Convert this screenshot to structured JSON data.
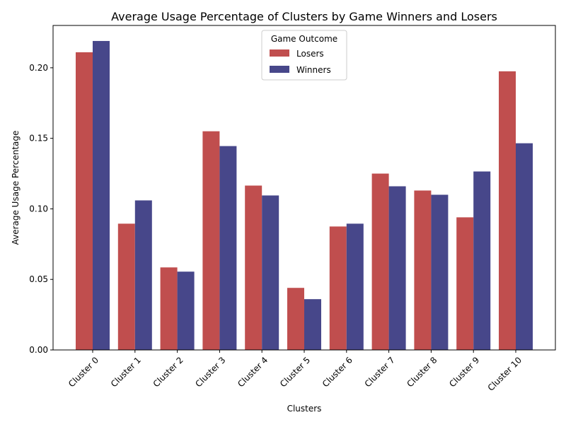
{
  "chart_data": {
    "type": "bar",
    "title": "Average Usage Percentage of Clusters by Game Winners and Losers",
    "xlabel": "Clusters",
    "ylabel": "Average Usage Percentage",
    "categories": [
      "Cluster 0",
      "Cluster 1",
      "Cluster 2",
      "Cluster 3",
      "Cluster 4",
      "Cluster 5",
      "Cluster 6",
      "Cluster 7",
      "Cluster 8",
      "Cluster 9",
      "Cluster 10"
    ],
    "series": [
      {
        "name": "Losers",
        "color": "#c04e4e",
        "values": [
          0.211,
          0.0895,
          0.0585,
          0.155,
          0.1165,
          0.044,
          0.0875,
          0.125,
          0.113,
          0.094,
          0.1975
        ]
      },
      {
        "name": "Winners",
        "color": "#47478a",
        "values": [
          0.219,
          0.106,
          0.0555,
          0.1445,
          0.1095,
          0.036,
          0.0895,
          0.116,
          0.11,
          0.1265,
          0.1465
        ]
      }
    ],
    "ylim": [
      0,
      0.23
    ],
    "yticks": [
      "0.00",
      "0.05",
      "0.10",
      "0.15",
      "0.20"
    ],
    "grid": false,
    "legend": {
      "title": "Game Outcome",
      "placement": "upper center"
    }
  }
}
